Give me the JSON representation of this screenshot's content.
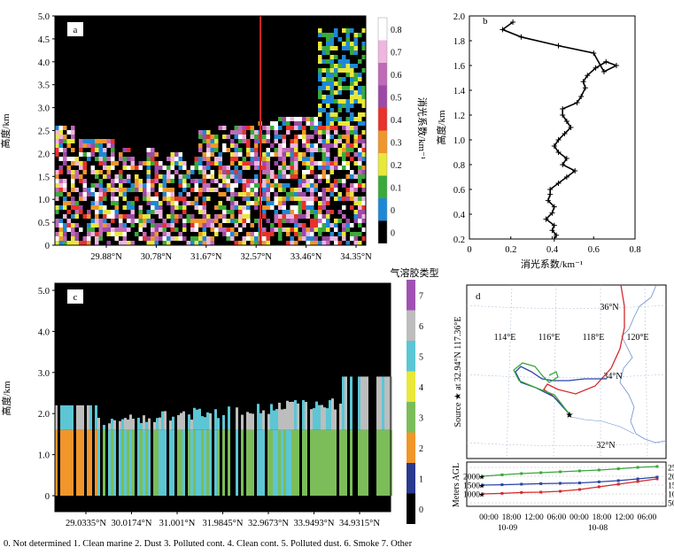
{
  "chart_data": [
    {
      "id": "a",
      "type": "heatmap",
      "panel_label": "a",
      "ylabel": "高度/km",
      "ylim": [
        0,
        5
      ],
      "yticks": [
        "0",
        "0.5",
        "1.0",
        "1.5",
        "2.0",
        "2.5",
        "3.0",
        "3.5",
        "4.0",
        "4.5",
        "5.0"
      ],
      "xticks": [
        "29.88°N",
        "30.78°N",
        "31.67°N",
        "32.57°N",
        "33.46°N",
        "34.35°N"
      ],
      "colorbar_label": "消光系数/km⁻¹",
      "colorbar_ticks": [
        "0",
        "0",
        "0.1",
        "0.2",
        "0.3",
        "0.4",
        "0.5",
        "0.6",
        "0.7",
        "0.8"
      ],
      "colorbar_colors": [
        "#000000",
        "#1e88d6",
        "#3aaa3a",
        "#e8e83a",
        "#f0962a",
        "#e8322a",
        "#9c4aa6",
        "#c06ab8",
        "#efb6e0",
        "#ffffff"
      ],
      "marker_line_color": "#cc2222"
    },
    {
      "id": "b",
      "type": "line",
      "panel_label": "b",
      "xlabel": "消光系数/km⁻¹",
      "ylabel": "高度/km",
      "xlim": [
        0,
        0.8
      ],
      "ylim": [
        0.2,
        2.0
      ],
      "xticks": [
        "0",
        "0.2",
        "0.4",
        "0.6",
        "0.8"
      ],
      "yticks": [
        "0.2",
        "0.4",
        "0.6",
        "0.8",
        "1.0",
        "1.2",
        "1.4",
        "1.6",
        "1.8",
        "2.0"
      ],
      "series": [
        {
          "name": "profile",
          "x": [
            0.41,
            0.42,
            0.4,
            0.41,
            0.37,
            0.4,
            0.41,
            0.38,
            0.39,
            0.39,
            0.43,
            0.47,
            0.51,
            0.45,
            0.47,
            0.43,
            0.41,
            0.43,
            0.46,
            0.49,
            0.47,
            0.45,
            0.45,
            0.52,
            0.54,
            0.56,
            0.55,
            0.57,
            0.61,
            0.66,
            0.71,
            0.65,
            0.6,
            0.43,
            0.25,
            0.16,
            0.21
          ],
          "y": [
            0.2,
            0.23,
            0.27,
            0.31,
            0.36,
            0.41,
            0.46,
            0.51,
            0.56,
            0.6,
            0.65,
            0.7,
            0.75,
            0.8,
            0.85,
            0.9,
            0.95,
            1.0,
            1.05,
            1.1,
            1.15,
            1.2,
            1.25,
            1.3,
            1.35,
            1.42,
            1.47,
            1.52,
            1.58,
            1.63,
            1.6,
            1.55,
            1.7,
            1.76,
            1.83,
            1.89,
            1.95
          ]
        }
      ]
    },
    {
      "id": "c",
      "type": "heatmap",
      "panel_label": "c",
      "ylabel": "高度/km",
      "ylim": [
        0,
        5
      ],
      "yticks": [
        "0",
        "1.0",
        "2.0",
        "3.0",
        "4.0",
        "5.0"
      ],
      "xticks": [
        "29.0335°N",
        "30.0174°N",
        "31.001°N",
        "31.9845°N",
        "32.9673°N",
        "33.9493°N",
        "34.9315°N"
      ],
      "colorbar_title": "气溶胶类型",
      "colorbar_ticks": [
        "0",
        "1",
        "2",
        "3",
        "4",
        "5",
        "6",
        "7"
      ],
      "colorbar_colors": [
        "#000000",
        "#2a3a8e",
        "#f0962a",
        "#7cbd5a",
        "#e8e83a",
        "#5cc6d4",
        "#bdbdbd",
        "#a052b2"
      ]
    },
    {
      "id": "d",
      "type": "line",
      "panel_label": "d",
      "map_labels": {
        "lon": [
          "114°E",
          "116°E",
          "118°E",
          "120°E"
        ],
        "lat": [
          "36°N",
          "34°N",
          "32°N"
        ]
      },
      "source_label": "Source ★ at 32.94°N 117.36°E",
      "ylabel": "Meters AGL",
      "yticks": [
        "500",
        "1000",
        "1500",
        "2000",
        "2500"
      ],
      "time_ticks": [
        "00:00",
        "18:00",
        "12:00",
        "06:00",
        "00:00",
        "18:00",
        "12:00",
        "06:00"
      ],
      "date_labels": [
        "10-09",
        "10-08"
      ],
      "series": [
        {
          "name": "red",
          "color": "#d42a2a",
          "start_height": 1000,
          "heights": [
            1000,
            1030,
            1080,
            1100,
            1150,
            1250,
            1400,
            1550,
            1700,
            1850
          ]
        },
        {
          "name": "blue",
          "color": "#2a44a8",
          "start_height": 1500,
          "heights": [
            1500,
            1520,
            1550,
            1580,
            1600,
            1620,
            1680,
            1750,
            1850,
            1950
          ]
        },
        {
          "name": "green",
          "color": "#3aa83a",
          "start_height": 2000,
          "heights": [
            2000,
            2080,
            2150,
            2200,
            2250,
            2300,
            2350,
            2420,
            2500,
            2550
          ]
        }
      ]
    }
  ],
  "caption": "0. Not determined   1. Clean marine  2. Dust 3. Polluted cont. 4. Clean cont. 5. Polluted dust. 6. Smoke 7. Other"
}
